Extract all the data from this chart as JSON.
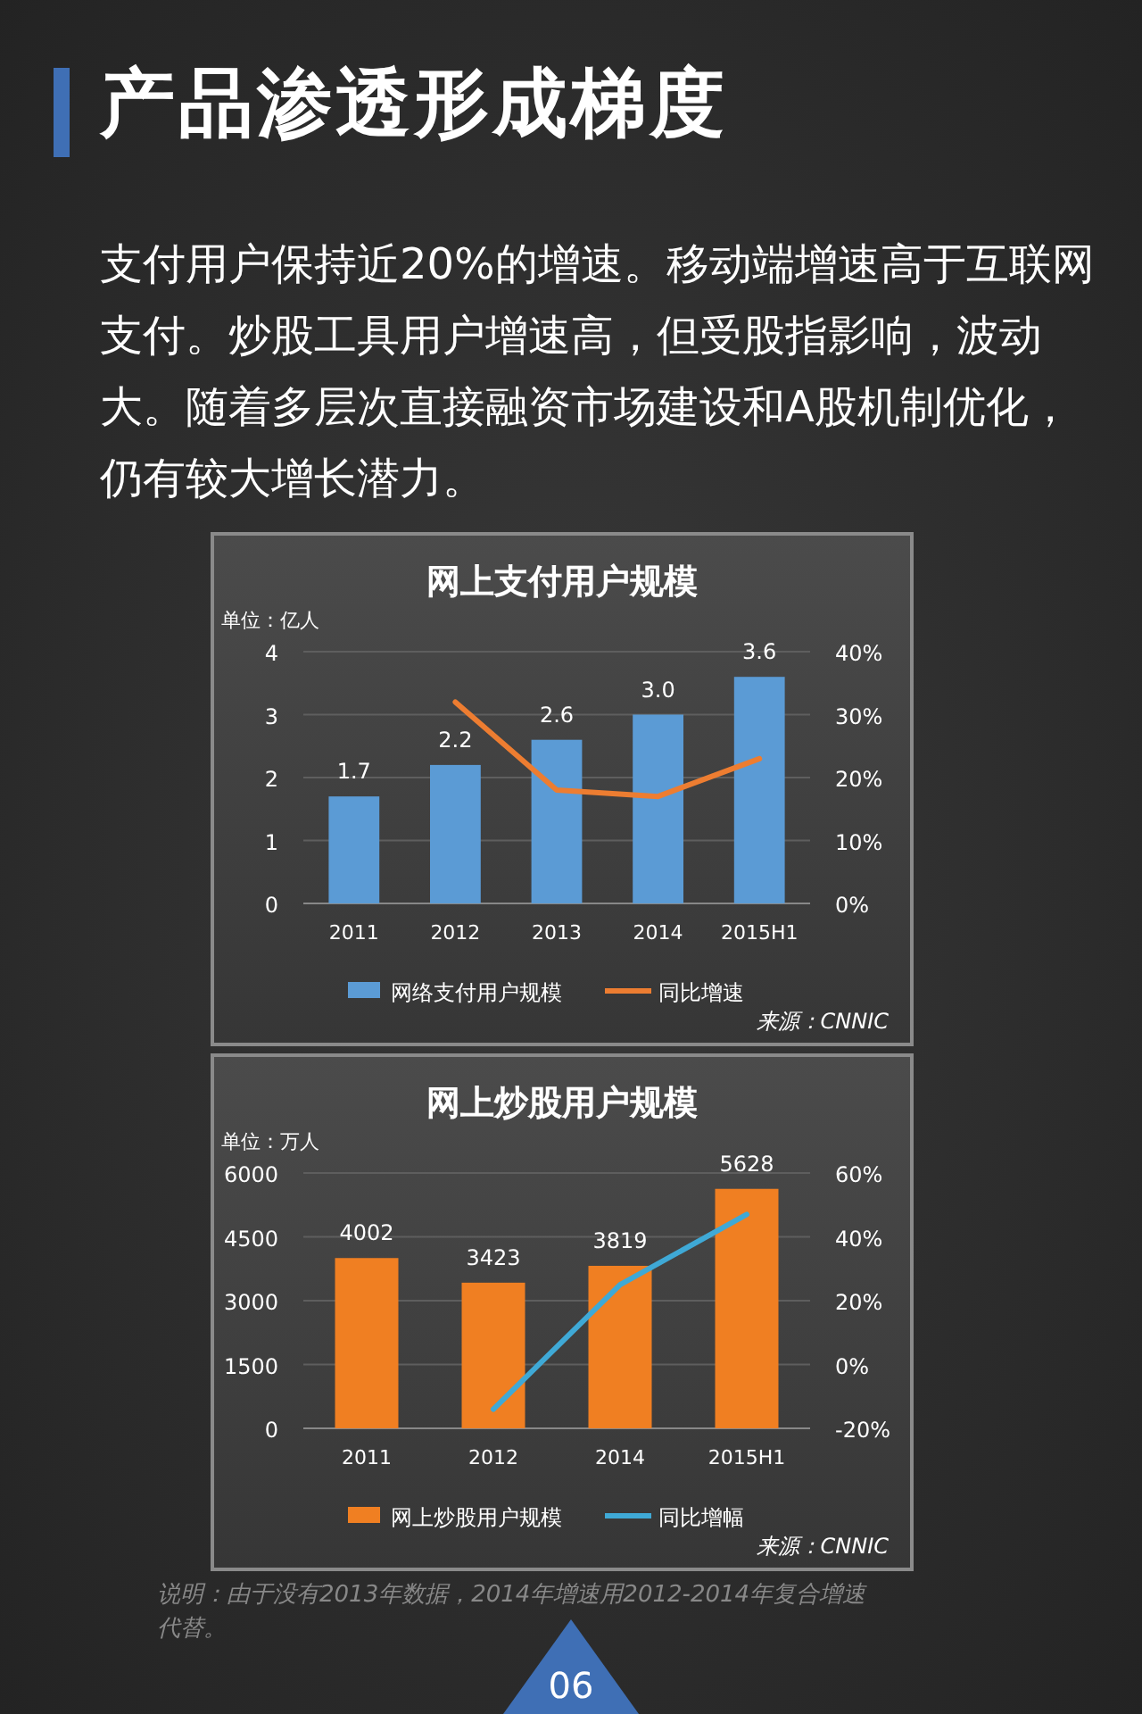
{
  "chart_data": [
    {
      "type": "other",
      "title": "产品渗透形成梯度",
      "subtitle": "支付用户保持近20%的增速。移动端增速高于互联网支付。炒股工具用户增速高，但受股指影响，波动大。随着多层次直接融资市场建设和A股机制优化，仍有较大增长潜力。",
      "annotations": [
        "06"
      ]
    },
    {
      "type": "bar",
      "title": "网上支付用户规模",
      "ylabel": "单位：亿人",
      "categories": [
        "2011",
        "2012",
        "2013",
        "2014",
        "2015H1"
      ],
      "series": [
        {
          "name": "网络支付用户规模",
          "type": "bar",
          "color": "#5b9bd5",
          "values": [
            1.7,
            2.2,
            2.6,
            3.0,
            3.6
          ],
          "value_labels": [
            "1.7",
            "2.2",
            "2.6",
            "3.0",
            "3.6"
          ]
        },
        {
          "name": "同比增速",
          "type": "line",
          "axis": "y2",
          "color": "#ed7d31",
          "values": [
            null,
            32,
            18,
            17,
            23
          ]
        }
      ],
      "ylim": [
        0,
        4
      ],
      "yticks": [
        0,
        1,
        2,
        3,
        4
      ],
      "y2lim": [
        0,
        40
      ],
      "y2ticks": [
        {
          "value": 0,
          "label": "0%"
        },
        {
          "value": 10,
          "label": "10%"
        },
        {
          "value": 20,
          "label": "20%"
        },
        {
          "value": 30,
          "label": "30%"
        },
        {
          "value": 40,
          "label": "40%"
        }
      ],
      "grid": "y",
      "legend": "bottom",
      "annotations": [
        "来源：CNNIC"
      ]
    },
    {
      "type": "bar",
      "title": "网上炒股用户规模",
      "ylabel": "单位：万人",
      "categories": [
        "2011",
        "2012",
        "2014",
        "2015H1"
      ],
      "series": [
        {
          "name": "网上炒股用户规模",
          "type": "bar",
          "color": "#f07f22",
          "values": [
            4002,
            3423,
            3819,
            5628
          ],
          "value_labels": [
            "4002",
            "3423",
            "3819",
            "5628"
          ]
        },
        {
          "name": "同比增幅",
          "type": "line",
          "axis": "y2",
          "color": "#3fa9d6",
          "values": [
            null,
            -14,
            25,
            47
          ]
        }
      ],
      "ylim": [
        0,
        6000
      ],
      "yticks": [
        0,
        1500,
        3000,
        4500,
        6000
      ],
      "y2lim": [
        -20,
        60
      ],
      "y2ticks": [
        {
          "value": -20,
          "label": "-20%"
        },
        {
          "value": 0,
          "label": "0%"
        },
        {
          "value": 20,
          "label": "20%"
        },
        {
          "value": 40,
          "label": "40%"
        },
        {
          "value": 60,
          "label": "60%"
        }
      ],
      "grid": "y",
      "legend": "bottom",
      "annotations": [
        "来源：CNNIC",
        "说明：由于没有2013年数据，2014年增速用2012-2014年复合增速代替。"
      ]
    }
  ]
}
